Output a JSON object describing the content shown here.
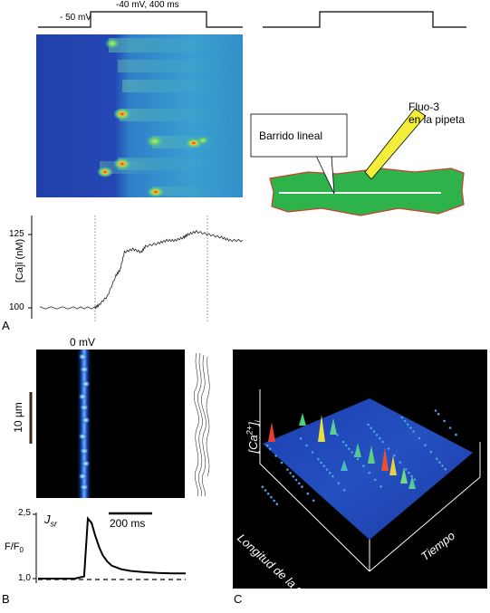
{
  "panel_a": {
    "letter": "A",
    "protocol": {
      "hold_label": "- 50 mV",
      "step_label": "-40 mV, 400 ms"
    },
    "trace": {
      "ylabel": "[Ca]i (nM)",
      "ytick_top": "125",
      "ytick_bottom": "100"
    },
    "schematic": {
      "scan_label": "Barrido lineal",
      "dye_label_1": "Fluo-3",
      "dye_label_2": "en la pipeta"
    },
    "colors": {
      "cell_fill": "#2db34a",
      "cell_edge": "#d23a2f",
      "pipette": "#f2ee3a",
      "image_bg": "#2a4fb8"
    }
  },
  "panel_b": {
    "letter": "B",
    "voltage_label": "0 mV",
    "scale_label": "10 µm",
    "flux_label": "J",
    "flux_sub": "sr",
    "ylabel_main": "F/F",
    "ylabel_sub": "0",
    "ytick_top": "2,5",
    "ytick_bottom": "1,0",
    "time_scale": "200 ms"
  },
  "panel_c": {
    "letter": "C",
    "zlabel_main": "[Ca",
    "zlabel_sup": "2+",
    "zlabel_end": "]",
    "zlabel_sub": "i",
    "axis_length": "Longitud de la célula",
    "axis_time": "Tiempo"
  },
  "chart_data": [
    {
      "type": "line",
      "title": "",
      "ylabel": "[Ca]i (nM)",
      "ylim": [
        98,
        127
      ],
      "x": [
        0,
        40,
        65,
        70,
        80,
        90,
        95,
        100,
        110,
        120,
        125,
        140,
        150,
        160,
        170,
        175,
        185,
        200,
        215,
        225,
        240
      ],
      "values": [
        100,
        100,
        100,
        101,
        104,
        111,
        113,
        119,
        120,
        119,
        121,
        122,
        123,
        123,
        124,
        125,
        126,
        125,
        124,
        123,
        123
      ]
    },
    {
      "type": "line",
      "title": "",
      "ylabel": "F/F0",
      "ylim": [
        1.0,
        2.5
      ],
      "x": [
        0,
        40,
        50,
        54,
        58,
        62,
        66,
        70,
        75,
        80,
        90,
        100,
        115,
        130,
        145,
        160
      ],
      "values": [
        1.0,
        1.0,
        1.05,
        2.4,
        2.3,
        2.0,
        1.75,
        1.55,
        1.4,
        1.3,
        1.22,
        1.18,
        1.15,
        1.13,
        1.12,
        1.12
      ]
    }
  ]
}
